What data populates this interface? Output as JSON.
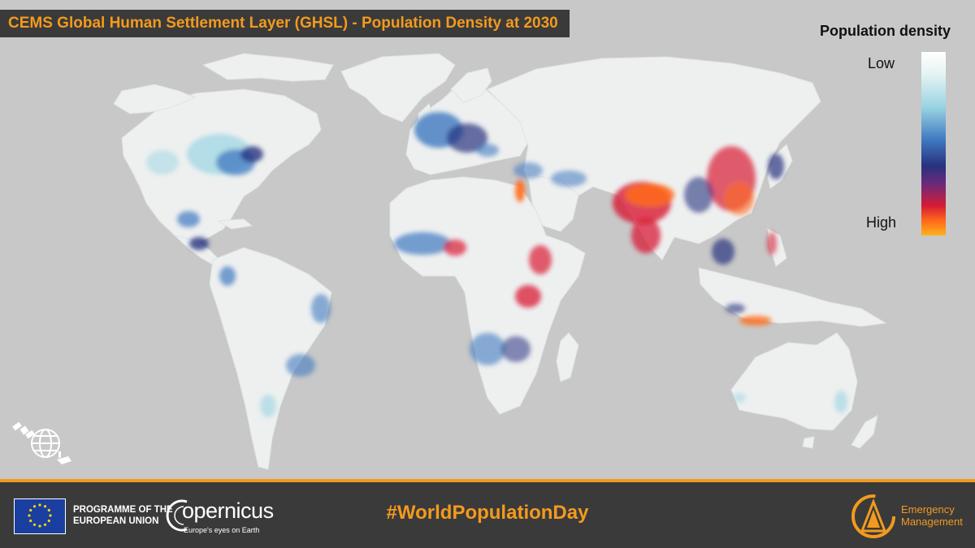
{
  "title": "CEMS Global Human Settlement Layer (GHSL)  - Population Density at 2030",
  "legend": {
    "title": "Population density",
    "low_label": "Low",
    "high_label": "High"
  },
  "footer": {
    "programme_line1": "PROGRAMME OF THE",
    "programme_line2": "EUROPEAN UNION",
    "copernicus_name": "opernicus",
    "copernicus_tagline": "Europe's eyes on Earth",
    "hashtag": "#WorldPopulationDay",
    "em_line1": "Emergency",
    "em_line2": "Management"
  },
  "colors": {
    "ocean": "#c8c8c8",
    "land": "#eef0f0",
    "accent": "#f39a1e",
    "banner": "#3a3a3a",
    "density_low": "#ffffff",
    "density_mid": "#3f79c0",
    "density_dense": "#27327f",
    "density_high": "#d81b34",
    "density_max": "#ffb21c"
  },
  "icons": [
    "eu-flag-icon",
    "copernicus-logo-icon",
    "emergency-management-icon",
    "satellite-globe-icon"
  ]
}
